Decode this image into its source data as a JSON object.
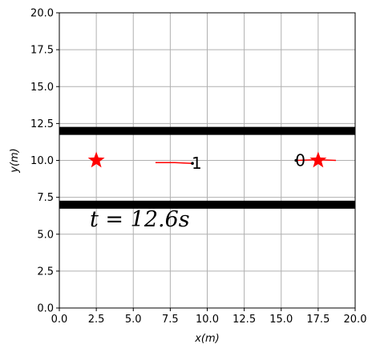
{
  "chart_data": {
    "type": "scatter",
    "title": "",
    "xlabel": "x(m)",
    "ylabel": "y(m)",
    "xlim": [
      0,
      20
    ],
    "ylim": [
      0,
      20
    ],
    "xticks": [
      0.0,
      2.5,
      5.0,
      7.5,
      10.0,
      12.5,
      15.0,
      17.5,
      20.0
    ],
    "yticks": [
      0.0,
      2.5,
      5.0,
      7.5,
      10.0,
      12.5,
      15.0,
      17.5,
      20.0
    ],
    "xtick_labels": [
      "0.0",
      "2.5",
      "5.0",
      "7.5",
      "10.0",
      "12.5",
      "15.0",
      "17.5",
      "20.0"
    ],
    "ytick_labels": [
      "0.0",
      "2.5",
      "5.0",
      "7.5",
      "10.0",
      "12.5",
      "15.0",
      "17.5",
      "20.0"
    ],
    "grid": true,
    "time_label": "t = 12.6s",
    "walls": [
      {
        "y": 12.0,
        "x": [
          0,
          20
        ],
        "color": "#000000"
      },
      {
        "y": 7.0,
        "x": [
          0,
          20
        ],
        "color": "#000000"
      }
    ],
    "goals": [
      {
        "x": 2.5,
        "y": 10.0,
        "color": "#ff0000"
      },
      {
        "x": 17.5,
        "y": 10.0,
        "color": "#ff0000"
      }
    ],
    "agents": [
      {
        "label": "0",
        "position": {
          "x": 16.0,
          "y": 10.0
        },
        "trail": [
          {
            "x": 16.0,
            "y": 10.0
          },
          {
            "x": 17.5,
            "y": 10.05
          },
          {
            "x": 18.7,
            "y": 10.0
          }
        ],
        "trail_color": "#ff0000"
      },
      {
        "label": "1",
        "position": {
          "x": 9.0,
          "y": 9.8
        },
        "trail": [
          {
            "x": 6.5,
            "y": 9.85
          },
          {
            "x": 7.8,
            "y": 9.85
          },
          {
            "x": 9.0,
            "y": 9.8
          }
        ],
        "trail_color": "#ff0000"
      }
    ],
    "colors": {
      "grid": "#b0b0b0",
      "axes": "#000000",
      "trail": "#ff0000",
      "star": "#ff0000",
      "agent_dot": "#000000"
    }
  }
}
